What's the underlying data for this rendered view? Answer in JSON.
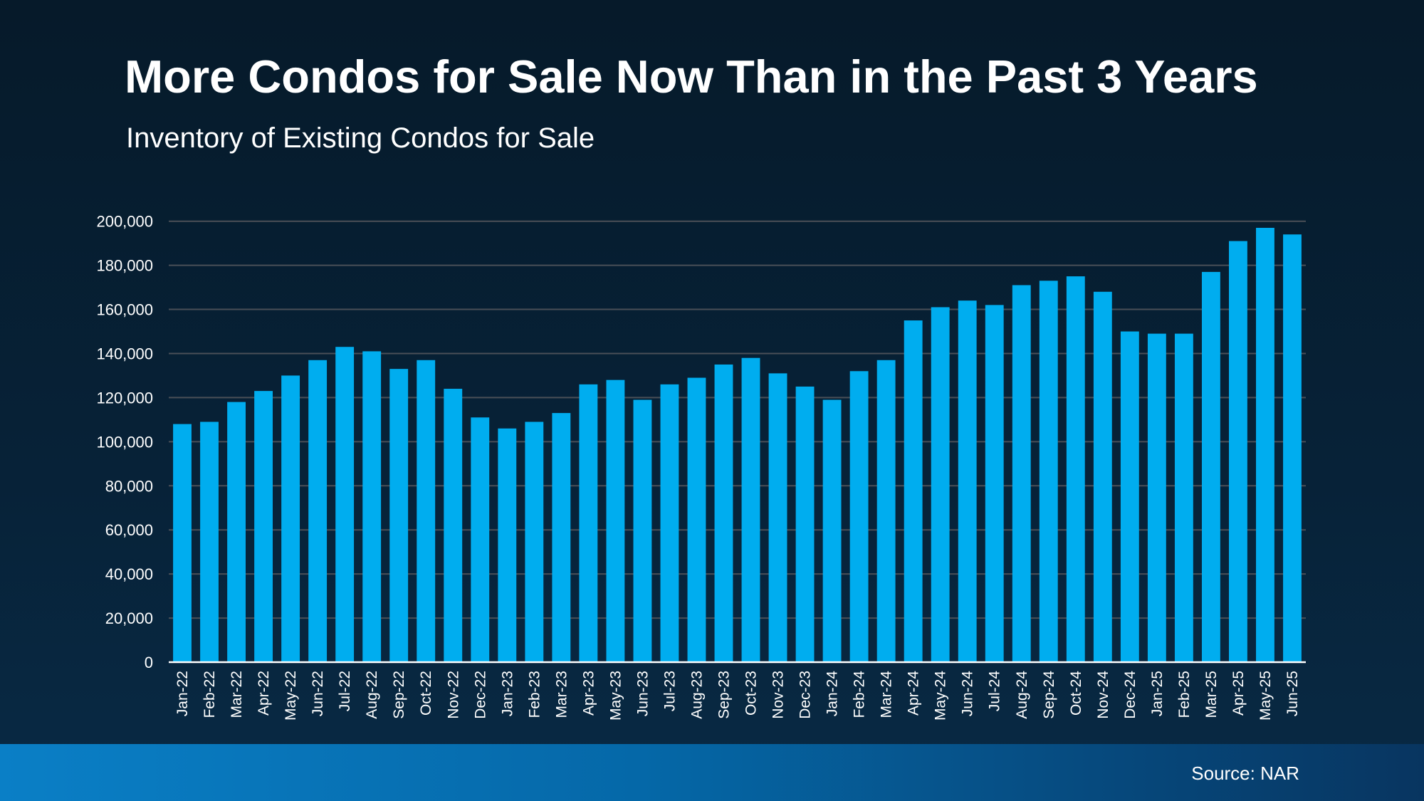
{
  "chart_data": {
    "type": "bar",
    "title": "More Condos for Sale Now Than in the Past 3 Years",
    "subtitle": "Inventory of Existing Condos for Sale",
    "xlabel": "",
    "ylabel": "",
    "ylim": [
      0,
      200000
    ],
    "yticks": [
      "0",
      "20,000",
      "40,000",
      "60,000",
      "80,000",
      "100,000",
      "120,000",
      "140,000",
      "160,000",
      "180,000",
      "200,000"
    ],
    "grid": true,
    "categories": [
      "Jan-22",
      "Feb-22",
      "Mar-22",
      "Apr-22",
      "May-22",
      "Jun-22",
      "Jul-22",
      "Aug-22",
      "Sep-22",
      "Oct-22",
      "Nov-22",
      "Dec-22",
      "Jan-23",
      "Feb-23",
      "Mar-23",
      "Apr-23",
      "May-23",
      "Jun-23",
      "Jul-23",
      "Aug-23",
      "Sep-23",
      "Oct-23",
      "Nov-23",
      "Dec-23",
      "Jan-24",
      "Feb-24",
      "Mar-24",
      "Apr-24",
      "May-24",
      "Jun-24",
      "Jul-24",
      "Aug-24",
      "Sep-24",
      "Oct-24",
      "Nov-24",
      "Dec-24",
      "Jan-25",
      "Feb-25",
      "Mar-25",
      "Apr-25",
      "May-25",
      "Jun-25"
    ],
    "values": [
      108000,
      109000,
      118000,
      123000,
      130000,
      137000,
      143000,
      141000,
      133000,
      137000,
      124000,
      111000,
      106000,
      109000,
      113000,
      126000,
      128000,
      119000,
      126000,
      129000,
      135000,
      138000,
      131000,
      125000,
      119000,
      132000,
      137000,
      155000,
      161000,
      164000,
      162000,
      171000,
      173000,
      175000,
      168000,
      150000,
      149000,
      149000,
      177000,
      191000,
      197000,
      194000
    ],
    "bar_color": "#00adef",
    "grid_color": "#4a4f57"
  },
  "footer": {
    "source": "Source: NAR"
  }
}
